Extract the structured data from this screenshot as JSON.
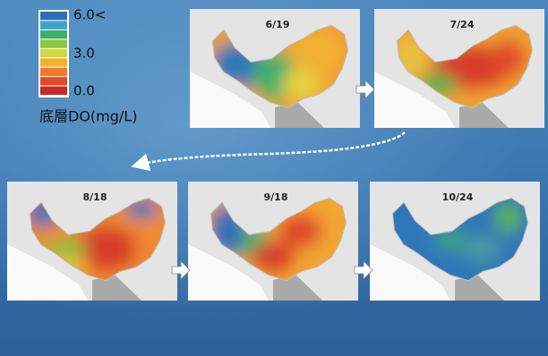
{
  "legend": {
    "title": "底層DO(mg/L)",
    "labels": [
      "6.0<",
      "3.0",
      "0.0"
    ]
  },
  "panels": [
    {
      "date": "6/19"
    },
    {
      "date": "7/24"
    },
    {
      "date": "8/18"
    },
    {
      "date": "9/18"
    },
    {
      "date": "10/24"
    }
  ]
}
